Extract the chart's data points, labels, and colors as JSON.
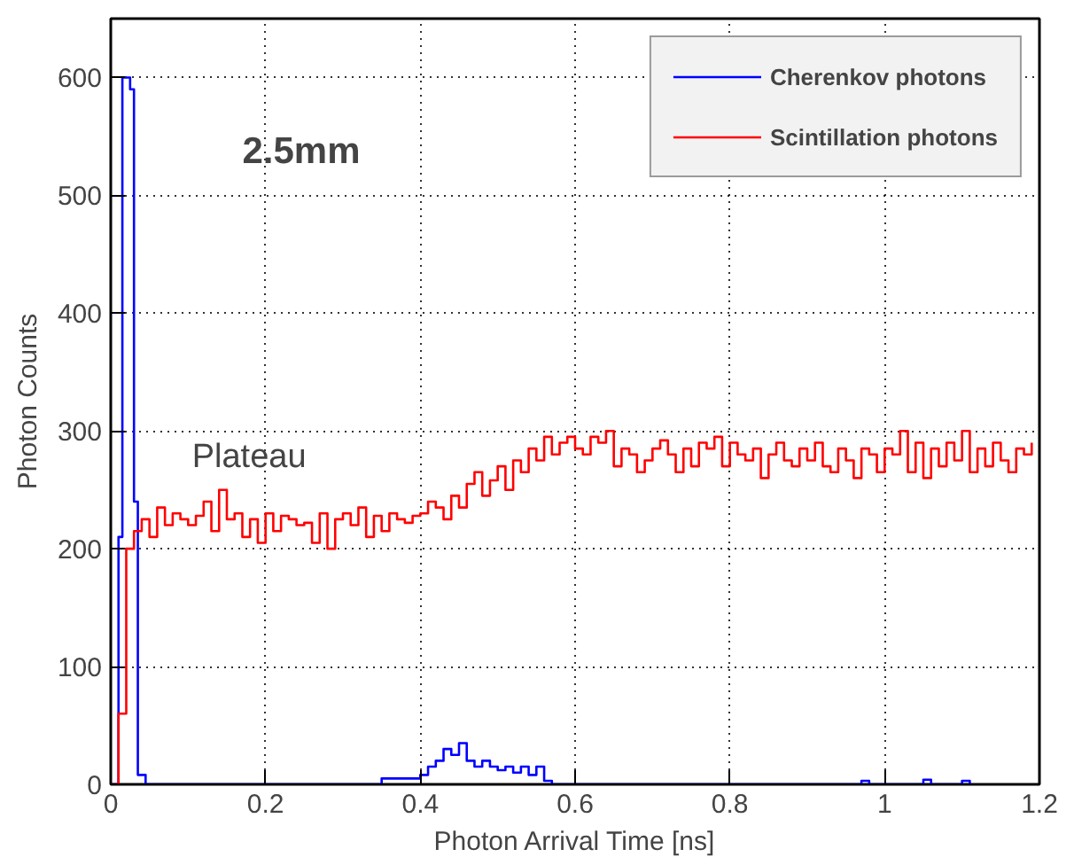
{
  "chart_data": {
    "type": "step",
    "xlabel": "Photon Arrival Time [ns]",
    "ylabel": "Photon Counts",
    "annotations": [
      "2.5mm",
      "Plateau"
    ],
    "xlim": [
      0,
      1.2
    ],
    "ylim": [
      0,
      650
    ],
    "xticks": [
      0,
      0.2,
      0.4,
      0.6,
      0.8,
      1,
      1.2
    ],
    "yticks": [
      0,
      100,
      200,
      300,
      400,
      500,
      600
    ],
    "grid": true,
    "legend": "top right",
    "line_style": "solid",
    "series": [
      {
        "name": "Cherenkov photons",
        "color": "#0000ff",
        "x": [
          0,
          0.01,
          0.015,
          0.025,
          0.03,
          0.035,
          0.045,
          0.35,
          0.4,
          0.41,
          0.42,
          0.43,
          0.44,
          0.45,
          0.46,
          0.47,
          0.48,
          0.49,
          0.5,
          0.51,
          0.52,
          0.53,
          0.54,
          0.55,
          0.56,
          0.57,
          0.97,
          0.98,
          1.05,
          1.06,
          1.1,
          1.11
        ],
        "values": [
          0,
          210,
          600,
          590,
          240,
          8,
          0,
          5,
          8,
          15,
          20,
          30,
          25,
          35,
          20,
          15,
          20,
          15,
          12,
          15,
          10,
          15,
          8,
          15,
          3,
          0,
          3,
          0,
          4,
          0,
          3,
          0
        ]
      },
      {
        "name": "Scintillation photons",
        "color": "#ff0000",
        "x": [
          0,
          0.01,
          0.02,
          0.03,
          0.04,
          0.05,
          0.06,
          0.07,
          0.08,
          0.09,
          0.1,
          0.11,
          0.12,
          0.13,
          0.14,
          0.15,
          0.16,
          0.17,
          0.18,
          0.19,
          0.2,
          0.21,
          0.22,
          0.23,
          0.24,
          0.25,
          0.26,
          0.27,
          0.28,
          0.29,
          0.3,
          0.31,
          0.32,
          0.33,
          0.34,
          0.35,
          0.36,
          0.37,
          0.38,
          0.39,
          0.4,
          0.41,
          0.42,
          0.43,
          0.44,
          0.45,
          0.46,
          0.47,
          0.48,
          0.49,
          0.5,
          0.51,
          0.52,
          0.53,
          0.54,
          0.55,
          0.56,
          0.57,
          0.58,
          0.59,
          0.6,
          0.61,
          0.62,
          0.63,
          0.64,
          0.65,
          0.66,
          0.67,
          0.68,
          0.69,
          0.7,
          0.71,
          0.72,
          0.73,
          0.74,
          0.75,
          0.76,
          0.77,
          0.78,
          0.79,
          0.8,
          0.81,
          0.82,
          0.83,
          0.84,
          0.85,
          0.86,
          0.87,
          0.88,
          0.89,
          0.9,
          0.91,
          0.92,
          0.93,
          0.94,
          0.95,
          0.96,
          0.97,
          0.98,
          0.99,
          1,
          1.01,
          1.02,
          1.03,
          1.04,
          1.05,
          1.06,
          1.07,
          1.08,
          1.09,
          1.1,
          1.11,
          1.12,
          1.13,
          1.14,
          1.15,
          1.16,
          1.17,
          1.18,
          1.19
        ],
        "values": [
          0,
          60,
          200,
          215,
          225,
          210,
          235,
          220,
          230,
          225,
          220,
          228,
          240,
          215,
          250,
          225,
          230,
          210,
          225,
          205,
          230,
          215,
          228,
          225,
          220,
          222,
          205,
          230,
          200,
          225,
          230,
          220,
          235,
          210,
          228,
          215,
          230,
          225,
          222,
          228,
          230,
          240,
          235,
          225,
          245,
          235,
          255,
          265,
          245,
          258,
          270,
          250,
          275,
          265,
          285,
          275,
          295,
          280,
          290,
          295,
          285,
          280,
          295,
          290,
          300,
          270,
          285,
          280,
          265,
          275,
          285,
          292,
          280,
          265,
          285,
          270,
          290,
          285,
          295,
          270,
          290,
          280,
          275,
          285,
          260,
          280,
          290,
          275,
          270,
          285,
          275,
          290,
          270,
          265,
          285,
          275,
          260,
          285,
          280,
          265,
          285,
          280,
          300,
          265,
          290,
          260,
          285,
          270,
          290,
          275,
          300,
          265,
          285,
          270,
          290,
          275,
          265,
          285,
          280,
          290
        ]
      }
    ]
  }
}
